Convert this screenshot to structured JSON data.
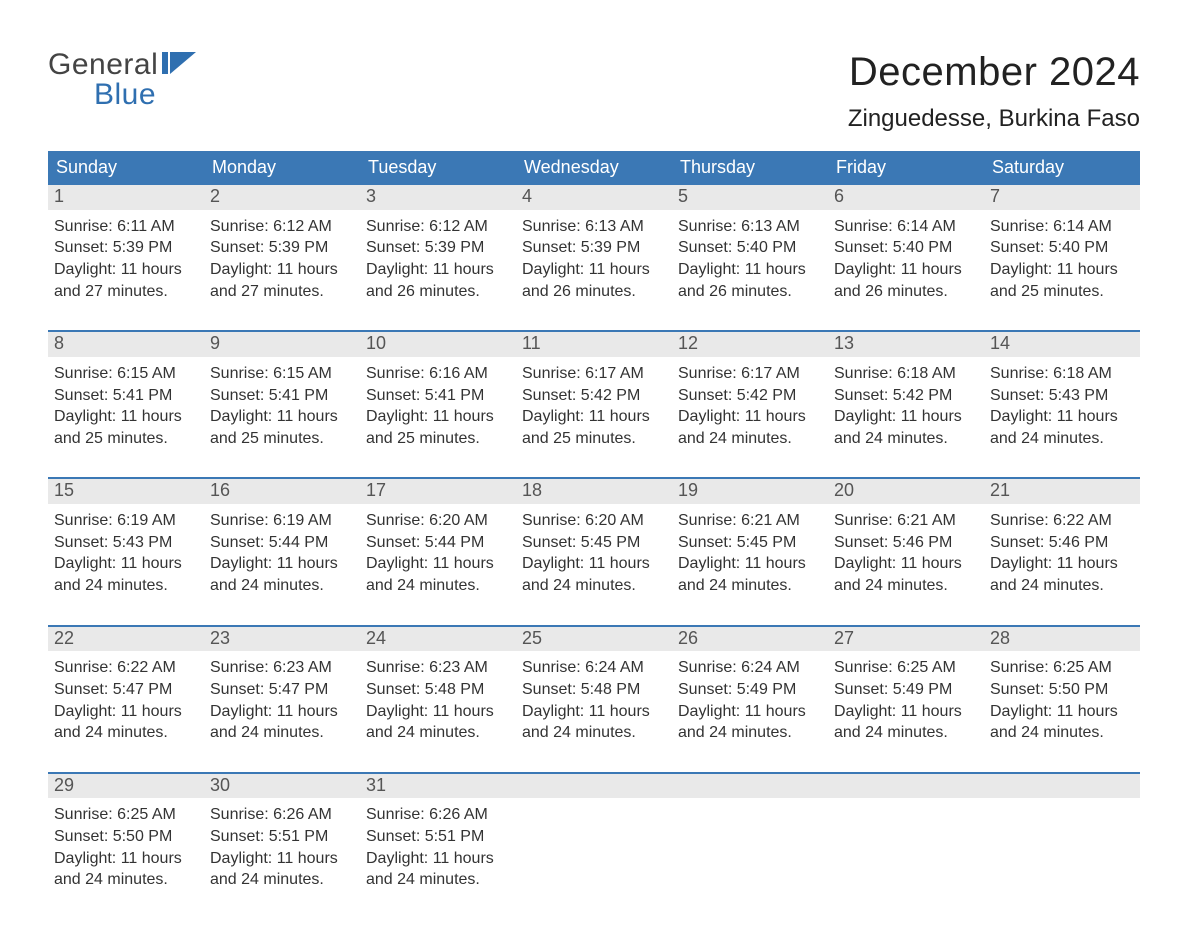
{
  "brand": {
    "word1": "General",
    "word2": "Blue",
    "text_color": "#444444",
    "accent_color": "#2f6fb0"
  },
  "title": "December 2024",
  "location": "Zinguedesse, Burkina Faso",
  "colors": {
    "header_bg": "#3b78b5",
    "header_text": "#ffffff",
    "daynum_bg": "#e9e9e9",
    "daynum_text": "#555555",
    "rule": "#3b78b5",
    "body_text": "#333333",
    "page_bg": "#ffffff"
  },
  "typography": {
    "title_fontsize": 40,
    "location_fontsize": 24,
    "dow_fontsize": 18,
    "daynum_fontsize": 18,
    "body_fontsize": 16,
    "logo_fontsize": 30
  },
  "days_of_week": [
    "Sunday",
    "Monday",
    "Tuesday",
    "Wednesday",
    "Thursday",
    "Friday",
    "Saturday"
  ],
  "labels": {
    "sunrise": "Sunrise:",
    "sunset": "Sunset:",
    "daylight": "Daylight:"
  },
  "weeks": [
    [
      {
        "n": "1",
        "sunrise": "6:11 AM",
        "sunset": "5:39 PM",
        "daylight1": "11 hours",
        "daylight2": "and 27 minutes."
      },
      {
        "n": "2",
        "sunrise": "6:12 AM",
        "sunset": "5:39 PM",
        "daylight1": "11 hours",
        "daylight2": "and 27 minutes."
      },
      {
        "n": "3",
        "sunrise": "6:12 AM",
        "sunset": "5:39 PM",
        "daylight1": "11 hours",
        "daylight2": "and 26 minutes."
      },
      {
        "n": "4",
        "sunrise": "6:13 AM",
        "sunset": "5:39 PM",
        "daylight1": "11 hours",
        "daylight2": "and 26 minutes."
      },
      {
        "n": "5",
        "sunrise": "6:13 AM",
        "sunset": "5:40 PM",
        "daylight1": "11 hours",
        "daylight2": "and 26 minutes."
      },
      {
        "n": "6",
        "sunrise": "6:14 AM",
        "sunset": "5:40 PM",
        "daylight1": "11 hours",
        "daylight2": "and 26 minutes."
      },
      {
        "n": "7",
        "sunrise": "6:14 AM",
        "sunset": "5:40 PM",
        "daylight1": "11 hours",
        "daylight2": "and 25 minutes."
      }
    ],
    [
      {
        "n": "8",
        "sunrise": "6:15 AM",
        "sunset": "5:41 PM",
        "daylight1": "11 hours",
        "daylight2": "and 25 minutes."
      },
      {
        "n": "9",
        "sunrise": "6:15 AM",
        "sunset": "5:41 PM",
        "daylight1": "11 hours",
        "daylight2": "and 25 minutes."
      },
      {
        "n": "10",
        "sunrise": "6:16 AM",
        "sunset": "5:41 PM",
        "daylight1": "11 hours",
        "daylight2": "and 25 minutes."
      },
      {
        "n": "11",
        "sunrise": "6:17 AM",
        "sunset": "5:42 PM",
        "daylight1": "11 hours",
        "daylight2": "and 25 minutes."
      },
      {
        "n": "12",
        "sunrise": "6:17 AM",
        "sunset": "5:42 PM",
        "daylight1": "11 hours",
        "daylight2": "and 24 minutes."
      },
      {
        "n": "13",
        "sunrise": "6:18 AM",
        "sunset": "5:42 PM",
        "daylight1": "11 hours",
        "daylight2": "and 24 minutes."
      },
      {
        "n": "14",
        "sunrise": "6:18 AM",
        "sunset": "5:43 PM",
        "daylight1": "11 hours",
        "daylight2": "and 24 minutes."
      }
    ],
    [
      {
        "n": "15",
        "sunrise": "6:19 AM",
        "sunset": "5:43 PM",
        "daylight1": "11 hours",
        "daylight2": "and 24 minutes."
      },
      {
        "n": "16",
        "sunrise": "6:19 AM",
        "sunset": "5:44 PM",
        "daylight1": "11 hours",
        "daylight2": "and 24 minutes."
      },
      {
        "n": "17",
        "sunrise": "6:20 AM",
        "sunset": "5:44 PM",
        "daylight1": "11 hours",
        "daylight2": "and 24 minutes."
      },
      {
        "n": "18",
        "sunrise": "6:20 AM",
        "sunset": "5:45 PM",
        "daylight1": "11 hours",
        "daylight2": "and 24 minutes."
      },
      {
        "n": "19",
        "sunrise": "6:21 AM",
        "sunset": "5:45 PM",
        "daylight1": "11 hours",
        "daylight2": "and 24 minutes."
      },
      {
        "n": "20",
        "sunrise": "6:21 AM",
        "sunset": "5:46 PM",
        "daylight1": "11 hours",
        "daylight2": "and 24 minutes."
      },
      {
        "n": "21",
        "sunrise": "6:22 AM",
        "sunset": "5:46 PM",
        "daylight1": "11 hours",
        "daylight2": "and 24 minutes."
      }
    ],
    [
      {
        "n": "22",
        "sunrise": "6:22 AM",
        "sunset": "5:47 PM",
        "daylight1": "11 hours",
        "daylight2": "and 24 minutes."
      },
      {
        "n": "23",
        "sunrise": "6:23 AM",
        "sunset": "5:47 PM",
        "daylight1": "11 hours",
        "daylight2": "and 24 minutes."
      },
      {
        "n": "24",
        "sunrise": "6:23 AM",
        "sunset": "5:48 PM",
        "daylight1": "11 hours",
        "daylight2": "and 24 minutes."
      },
      {
        "n": "25",
        "sunrise": "6:24 AM",
        "sunset": "5:48 PM",
        "daylight1": "11 hours",
        "daylight2": "and 24 minutes."
      },
      {
        "n": "26",
        "sunrise": "6:24 AM",
        "sunset": "5:49 PM",
        "daylight1": "11 hours",
        "daylight2": "and 24 minutes."
      },
      {
        "n": "27",
        "sunrise": "6:25 AM",
        "sunset": "5:49 PM",
        "daylight1": "11 hours",
        "daylight2": "and 24 minutes."
      },
      {
        "n": "28",
        "sunrise": "6:25 AM",
        "sunset": "5:50 PM",
        "daylight1": "11 hours",
        "daylight2": "and 24 minutes."
      }
    ],
    [
      {
        "n": "29",
        "sunrise": "6:25 AM",
        "sunset": "5:50 PM",
        "daylight1": "11 hours",
        "daylight2": "and 24 minutes."
      },
      {
        "n": "30",
        "sunrise": "6:26 AM",
        "sunset": "5:51 PM",
        "daylight1": "11 hours",
        "daylight2": "and 24 minutes."
      },
      {
        "n": "31",
        "sunrise": "6:26 AM",
        "sunset": "5:51 PM",
        "daylight1": "11 hours",
        "daylight2": "and 24 minutes."
      },
      {
        "empty": true
      },
      {
        "empty": true
      },
      {
        "empty": true
      },
      {
        "empty": true
      }
    ]
  ]
}
